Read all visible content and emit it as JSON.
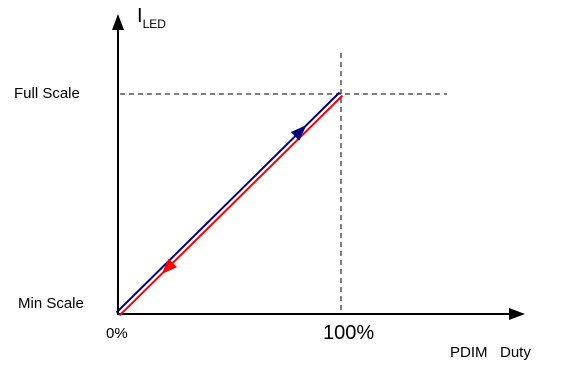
{
  "chart_data": {
    "type": "line",
    "ylabel": {
      "main": "I",
      "subscript": "LED"
    },
    "xlabel": "PDIM   Duty",
    "y_ticks": [
      "Min Scale",
      "Full Scale"
    ],
    "x_ticks": [
      "0%",
      "100%"
    ],
    "x": [
      0,
      100
    ],
    "xlim": [
      0,
      100
    ],
    "series": [
      {
        "values": [
          0,
          1
        ],
        "color": "#ff0000",
        "direction": "decreasing",
        "arrow": "down-left"
      },
      {
        "values": [
          0,
          1
        ],
        "color": "#000080",
        "direction": "increasing",
        "arrow": "up-right"
      }
    ],
    "reference_lines": {
      "dashed": true,
      "at_x": "100%",
      "at_y": "Full Scale"
    },
    "grid": false,
    "legend": "none"
  }
}
